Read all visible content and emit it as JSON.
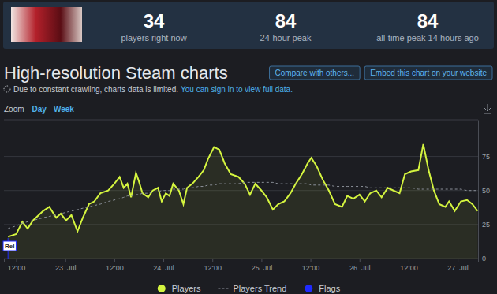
{
  "header": {
    "stats": [
      {
        "value": 34,
        "label": "players right now"
      },
      {
        "value": 84,
        "label": "24-hour peak"
      },
      {
        "value": 84,
        "label": "all-time peak 14 hours ago"
      }
    ]
  },
  "page": {
    "title": "High-resolution Steam charts",
    "buttons": [
      "Compare with others...",
      "Embed this chart on your website"
    ],
    "notice": "Due to constant crawling, charts data is limited.",
    "notice_link": "You can sign in to view full data.",
    "zoom_label": "Zoom",
    "zoom_options": [
      "Day",
      "Week"
    ]
  },
  "chart_data": {
    "type": "line",
    "x": [
      10,
      12,
      13.5,
      14.8,
      16.1,
      18.6,
      20.1,
      21.8,
      22.9,
      24.2,
      25.5,
      27,
      28.3,
      29.8,
      31.1,
      32.6,
      34.5,
      36,
      37.3,
      38.3,
      39.2,
      40.1,
      41.3,
      42,
      42.9,
      44.3,
      45.4,
      46.7,
      47.6,
      48.6,
      49.5,
      50.4,
      51.8,
      52.9,
      53.8,
      55.1,
      56.6,
      57.9,
      58.9,
      60.4,
      61.7,
      63,
      64.5,
      66.4,
      67.9,
      69.2,
      70.5,
      72,
      73.3,
      74.8,
      76.1,
      77.6,
      79.1,
      80.4,
      81.9,
      83.3,
      84.2,
      85.5,
      87,
      88.5,
      90,
      91.7,
      93,
      94.5,
      96,
      97.3,
      98.6,
      100.1,
      101.4,
      102.9,
      104.3,
      105.8,
      107.1,
      108.6,
      110.4,
      111.6,
      112.9,
      114.2,
      115.5,
      117,
      117.9,
      119.3,
      120.8,
      122.3,
      123.6,
      124.9
    ],
    "series": [
      {
        "name": "Players",
        "color": "#d4f43f",
        "line_style": "solid",
        "values": [
          16,
          18,
          27,
          22,
          28,
          35,
          38,
          30,
          33,
          28,
          32,
          20,
          30,
          40,
          42,
          48,
          50,
          55,
          60,
          52,
          55,
          45,
          63,
          57,
          48,
          45,
          50,
          52,
          42,
          48,
          46,
          55,
          50,
          40,
          52,
          55,
          60,
          65,
          73,
          82,
          80,
          70,
          62,
          60,
          55,
          47,
          55,
          50,
          45,
          36,
          40,
          42,
          48,
          55,
          62,
          70,
          74,
          68,
          58,
          50,
          40,
          38,
          46,
          44,
          47,
          42,
          48,
          50,
          45,
          52,
          50,
          48,
          62,
          64,
          65,
          84,
          65,
          50,
          40,
          38,
          42,
          35,
          42,
          43,
          40,
          35
        ]
      },
      {
        "name": "Players Trend",
        "color": "#8b9099",
        "line_style": "dashed",
        "values": [
          22,
          24,
          26,
          27,
          28,
          30,
          31,
          32,
          33,
          34,
          35,
          36,
          37,
          38,
          39,
          40,
          42,
          43,
          44,
          45,
          46,
          46,
          47,
          47,
          48,
          48,
          49,
          49,
          50,
          50,
          50,
          51,
          51,
          51,
          52,
          52,
          53,
          53,
          54,
          54,
          55,
          55,
          55,
          55,
          56,
          56,
          56,
          56,
          56,
          56,
          55,
          55,
          55,
          55,
          55,
          55,
          54,
          54,
          54,
          54,
          53,
          53,
          53,
          53,
          53,
          53,
          52,
          52,
          52,
          52,
          52,
          52,
          52,
          52,
          51,
          51,
          51,
          51,
          51,
          51,
          51,
          51,
          51,
          50,
          50,
          50
        ]
      }
    ],
    "flags": {
      "name": "Flags",
      "color": "#1f2bff",
      "items": [
        {
          "x": 10,
          "label": "Rel"
        }
      ]
    },
    "xlim": [
      9,
      125
    ],
    "xticks": [
      {
        "value": 12,
        "label": "12:00"
      },
      {
        "value": 24,
        "label": "23. Jul"
      },
      {
        "value": 36,
        "label": "12:00"
      },
      {
        "value": 48,
        "label": "24. Jul"
      },
      {
        "value": 60,
        "label": "12:00"
      },
      {
        "value": 72,
        "label": "25. Jul"
      },
      {
        "value": 84,
        "label": "12:00"
      },
      {
        "value": 96,
        "label": "26. Jul"
      },
      {
        "value": 108,
        "label": "12:00"
      },
      {
        "value": 120,
        "label": "27. Jul"
      }
    ],
    "ylim": [
      0,
      102
    ],
    "yticks": [
      0,
      25,
      50,
      75
    ],
    "grid": true,
    "legend": "bottom"
  }
}
